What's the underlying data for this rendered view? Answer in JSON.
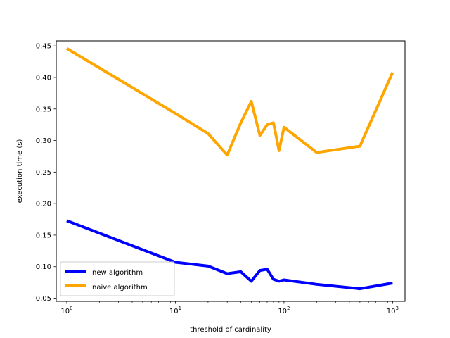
{
  "chart_data": {
    "type": "line",
    "title": "",
    "xlabel": "threshold of cardinality",
    "ylabel": "execution time (s)",
    "xscale": "log",
    "xlim": [
      0.8,
      1300
    ],
    "ylim": [
      0.045,
      0.458
    ],
    "x_ticks": [
      {
        "value": 1,
        "base": "10",
        "exp": "0"
      },
      {
        "value": 10,
        "base": "10",
        "exp": "1"
      },
      {
        "value": 100,
        "base": "10",
        "exp": "2"
      },
      {
        "value": 1000,
        "base": "10",
        "exp": "3"
      }
    ],
    "y_ticks": [
      "0.05",
      "0.10",
      "0.15",
      "0.20",
      "0.25",
      "0.30",
      "0.35",
      "0.40",
      "0.45"
    ],
    "grid": false,
    "legend": "lower-left",
    "x": [
      1,
      10,
      20,
      30,
      40,
      50,
      60,
      70,
      80,
      90,
      100,
      200,
      500,
      1000
    ],
    "series": [
      {
        "name": "new algorithm",
        "color": "#0000ff",
        "values": [
          0.173,
          0.107,
          0.101,
          0.089,
          0.092,
          0.077,
          0.094,
          0.096,
          0.08,
          0.077,
          0.079,
          0.072,
          0.065,
          0.074
        ]
      },
      {
        "name": "naive algorithm",
        "color": "#ffa500",
        "values": [
          0.446,
          0.343,
          0.311,
          0.277,
          0.328,
          0.362,
          0.308,
          0.325,
          0.328,
          0.284,
          0.321,
          0.281,
          0.291,
          0.408
        ]
      }
    ]
  }
}
